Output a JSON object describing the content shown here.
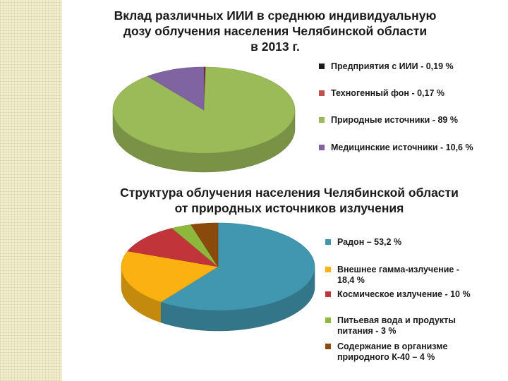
{
  "chart_data": [
    {
      "type": "pie",
      "title": [
        "Вклад различных ИИИ в  среднюю индивидуальную",
        "дозу облучения населения Челябинской области",
        "в  2013 г."
      ],
      "categories": [
        "Предприятия с ИИИ",
        "Техногенный фон",
        "Природные  источники",
        "Медицинские  источники"
      ],
      "values": [
        0.19,
        0.17,
        89,
        10.6
      ],
      "colors": [
        "#1c1c1c",
        "#c0504d",
        "#9bbb59",
        "#8064a2"
      ],
      "legend": [
        "Предприятия с ИИИ - 0,19 %",
        "Техногенный фон - 0,17 %",
        "Природные  источники  - 89 %",
        "Медицинские  источники - 10,6 %"
      ],
      "legend_position": "right"
    },
    {
      "type": "pie",
      "title": [
        "Структура облучения населения Челябинской области",
        "от природных источников  излучения"
      ],
      "categories": [
        "Радон",
        "Внешнее гамма-излучение",
        "Космическое  излучение",
        "Питьевая  вода и продукты питания",
        "Содержание в организме природного К-40"
      ],
      "values": [
        53.2,
        18.4,
        10,
        3,
        4
      ],
      "colors": [
        "#4197b0",
        "#fbb111",
        "#c0343a",
        "#8eb73e",
        "#8a4a0c"
      ],
      "legend": [
        "Радон – 53,2 %",
        "Внешнее гамма-излучение - 18,4 %",
        "Космическое  излучение - 10 %",
        " Питьевая  вода и продукты питания - 3 %",
        "Содержание в организме природного К-40 – 4 %"
      ],
      "legend_position": "right"
    }
  ]
}
